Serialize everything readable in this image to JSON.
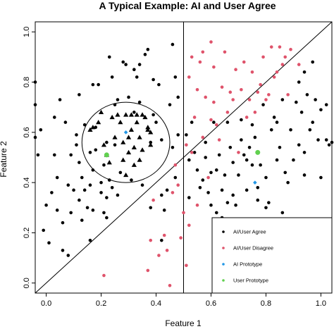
{
  "chart_data": {
    "type": "scatter",
    "title": "A Typical Example: AI and User Agree",
    "xlabel": "Feature 1",
    "ylabel": "Feature 2",
    "xlim": [
      -0.04,
      1.04
    ],
    "ylim": [
      -0.04,
      1.04
    ],
    "xticks": [
      "0.0",
      "0.2",
      "0.4",
      "0.6",
      "0.8",
      "1.0"
    ],
    "yticks": [
      "0.0",
      "0.2",
      "0.4",
      "0.6",
      "0.8",
      "1.0"
    ],
    "legend_position": "bottom-right",
    "legend": [
      {
        "label": "AI/User Agree",
        "color": "#000000"
      },
      {
        "label": "AI/User Disagree",
        "color": "#DF536B"
      },
      {
        "label": "AI Prototype",
        "color": "#2297E6"
      },
      {
        "label": "User Prototype",
        "color": "#61D04F"
      }
    ],
    "reference_lines": {
      "vertical_x": 0.5,
      "diagonal": [
        [
          -0.04,
          -0.04
        ],
        [
          1.04,
          1.04
        ]
      ]
    },
    "circle": {
      "center": [
        0.29,
        0.56
      ],
      "radius": 0.16
    },
    "series": [
      {
        "name": "AI/User Agree",
        "color": "#000000",
        "points": [
          [
            -0.04,
            0.8
          ],
          [
            -0.04,
            0.71
          ],
          [
            -0.04,
            0.58
          ],
          [
            -0.03,
            0.51
          ],
          [
            -0.02,
            0.61
          ],
          [
            -0.01,
            0.21
          ],
          [
            0.0,
            0.31
          ],
          [
            0.01,
            0.16
          ],
          [
            0.02,
            0.36
          ],
          [
            0.03,
            0.51
          ],
          [
            0.03,
            0.66
          ],
          [
            0.04,
            0.42
          ],
          [
            0.04,
            0.29
          ],
          [
            0.05,
            0.73
          ],
          [
            0.06,
            0.13
          ],
          [
            0.06,
            0.24
          ],
          [
            0.07,
            0.64
          ],
          [
            0.08,
            0.39
          ],
          [
            0.08,
            0.11
          ],
          [
            0.09,
            0.28
          ],
          [
            0.09,
            0.51
          ],
          [
            0.1,
            0.37
          ],
          [
            0.11,
            0.55
          ],
          [
            0.11,
            0.59
          ],
          [
            0.12,
            0.33
          ],
          [
            0.12,
            0.48
          ],
          [
            0.12,
            0.75
          ],
          [
            0.13,
            0.42
          ],
          [
            0.13,
            0.25
          ],
          [
            0.14,
            0.63
          ],
          [
            0.14,
            0.37
          ],
          [
            0.15,
            0.3
          ],
          [
            0.16,
            0.39
          ],
          [
            0.16,
            0.17
          ],
          [
            0.16,
            0.52
          ],
          [
            0.17,
            0.29
          ],
          [
            0.17,
            0.79
          ],
          [
            0.17,
            0.45
          ],
          [
            0.18,
            0.62
          ],
          [
            0.18,
            0.53
          ],
          [
            0.19,
            0.79
          ],
          [
            0.2,
            0.4
          ],
          [
            0.2,
            0.36
          ],
          [
            0.21,
            0.28
          ],
          [
            0.21,
            0.47
          ],
          [
            0.22,
            0.34
          ],
          [
            0.22,
            0.26
          ],
          [
            0.22,
            0.56
          ],
          [
            0.23,
            0.9
          ],
          [
            0.23,
            0.41
          ],
          [
            0.24,
            0.38
          ],
          [
            0.24,
            0.82
          ],
          [
            0.25,
            0.71
          ],
          [
            0.25,
            0.55
          ],
          [
            0.26,
            0.73
          ],
          [
            0.26,
            0.35
          ],
          [
            0.27,
            0.44
          ],
          [
            0.28,
            0.88
          ],
          [
            0.29,
            0.87
          ],
          [
            0.3,
            0.74
          ],
          [
            0.31,
            0.41
          ],
          [
            0.32,
            0.85
          ],
          [
            0.32,
            0.68
          ],
          [
            0.33,
            0.82
          ],
          [
            0.34,
            0.72
          ],
          [
            0.34,
            0.87
          ],
          [
            0.35,
            0.39
          ],
          [
            0.36,
            0.91
          ],
          [
            0.37,
            0.93
          ],
          [
            0.38,
            0.56
          ],
          [
            0.38,
            0.3
          ],
          [
            0.39,
            0.67
          ],
          [
            0.39,
            0.81
          ],
          [
            0.4,
            0.64
          ],
          [
            0.41,
            0.79
          ],
          [
            0.42,
            0.57
          ],
          [
            0.42,
            0.35
          ],
          [
            0.42,
            0.17
          ],
          [
            0.43,
            0.29
          ],
          [
            0.44,
            0.37
          ],
          [
            0.45,
            0.71
          ],
          [
            0.46,
            0.54
          ],
          [
            0.46,
            0.95
          ],
          [
            0.47,
            0.42
          ],
          [
            0.47,
            0.82
          ],
          [
            0.48,
            0.74
          ],
          [
            0.48,
            0.59
          ],
          [
            0.51,
            0.59
          ],
          [
            0.52,
            0.49
          ],
          [
            0.52,
            0.34
          ],
          [
            0.53,
            0.64
          ],
          [
            0.54,
            0.52
          ],
          [
            0.55,
            0.45
          ],
          [
            0.56,
            0.38
          ],
          [
            0.57,
            0.41
          ],
          [
            0.58,
            0.56
          ],
          [
            0.58,
            0.5
          ],
          [
            0.59,
            0.36
          ],
          [
            0.6,
            0.44
          ],
          [
            0.6,
            0.31
          ],
          [
            0.61,
            0.64
          ],
          [
            0.62,
            0.45
          ],
          [
            0.62,
            0.28
          ],
          [
            0.63,
            0.51
          ],
          [
            0.64,
            0.37
          ],
          [
            0.64,
            0.26
          ],
          [
            0.65,
            0.43
          ],
          [
            0.66,
            0.64
          ],
          [
            0.66,
            0.32
          ],
          [
            0.67,
            0.54
          ],
          [
            0.68,
            0.48
          ],
          [
            0.68,
            0.35
          ],
          [
            0.69,
            0.31
          ],
          [
            0.7,
            0.43
          ],
          [
            0.71,
            0.57
          ],
          [
            0.71,
            0.65
          ],
          [
            0.72,
            0.51
          ],
          [
            0.73,
            0.49
          ],
          [
            0.73,
            0.37
          ],
          [
            0.74,
            0.54
          ],
          [
            0.75,
            0.63
          ],
          [
            0.75,
            0.47
          ],
          [
            0.76,
            0.58
          ],
          [
            0.77,
            0.38
          ],
          [
            0.77,
            0.33
          ],
          [
            0.78,
            0.47
          ],
          [
            0.79,
            0.71
          ],
          [
            0.8,
            0.42
          ],
          [
            0.81,
            0.32
          ],
          [
            0.82,
            0.61
          ],
          [
            0.83,
            0.66
          ],
          [
            0.84,
            0.49
          ],
          [
            0.85,
            0.54
          ],
          [
            0.86,
            0.73
          ],
          [
            0.87,
            0.44
          ],
          [
            0.88,
            0.4
          ],
          [
            0.89,
            0.61
          ],
          [
            0.9,
            0.49
          ],
          [
            0.91,
            0.72
          ],
          [
            0.92,
            0.55
          ],
          [
            0.93,
            0.68
          ],
          [
            0.94,
            0.52
          ],
          [
            0.95,
            0.75
          ],
          [
            0.96,
            0.61
          ],
          [
            0.97,
            0.64
          ],
          [
            0.98,
            0.73
          ],
          [
            0.99,
            0.57
          ],
          [
            1.0,
            0.69
          ],
          [
            1.02,
            0.57
          ],
          [
            1.02,
            0.71
          ],
          [
            1.03,
            0.55
          ],
          [
            1.04,
            0.56
          ],
          [
            0.92,
            0.8
          ],
          [
            0.94,
            0.84
          ],
          [
            0.97,
            0.88
          ],
          [
            0.84,
            0.64
          ],
          [
            0.8,
            0.3
          ],
          [
            0.86,
            0.28
          ],
          [
            0.94,
            0.43
          ],
          [
            1.0,
            0.42
          ]
        ]
      },
      {
        "name": "AI/User Agree (triangles)",
        "color": "#000000",
        "shape": "triangle",
        "points": [
          [
            0.16,
            0.61
          ],
          [
            0.17,
            0.62
          ],
          [
            0.19,
            0.64
          ],
          [
            0.2,
            0.68
          ],
          [
            0.21,
            0.55
          ],
          [
            0.22,
            0.51
          ],
          [
            0.23,
            0.48
          ],
          [
            0.24,
            0.66
          ],
          [
            0.25,
            0.58
          ],
          [
            0.26,
            0.67
          ],
          [
            0.27,
            0.64
          ],
          [
            0.28,
            0.56
          ],
          [
            0.28,
            0.49
          ],
          [
            0.29,
            0.43
          ],
          [
            0.29,
            0.67
          ],
          [
            0.3,
            0.58
          ],
          [
            0.3,
            0.52
          ],
          [
            0.31,
            0.67
          ],
          [
            0.31,
            0.61
          ],
          [
            0.32,
            0.54
          ],
          [
            0.32,
            0.47
          ],
          [
            0.33,
            0.67
          ],
          [
            0.33,
            0.64
          ],
          [
            0.34,
            0.49
          ],
          [
            0.34,
            0.58
          ],
          [
            0.35,
            0.67
          ],
          [
            0.35,
            0.53
          ],
          [
            0.36,
            0.66
          ],
          [
            0.37,
            0.62
          ],
          [
            0.37,
            0.61
          ],
          [
            0.38,
            0.55
          ],
          [
            0.38,
            0.6
          ]
        ]
      },
      {
        "name": "AI/User Disagree",
        "color": "#DF536B",
        "points": [
          [
            0.21,
            0.03
          ],
          [
            0.45,
            -0.01
          ],
          [
            0.44,
            0.13
          ],
          [
            0.41,
            0.11
          ],
          [
            0.38,
            0.17
          ],
          [
            0.37,
            0.05
          ],
          [
            0.39,
            0.33
          ],
          [
            0.43,
            0.19
          ],
          [
            0.46,
            0.36
          ],
          [
            0.47,
            0.47
          ],
          [
            0.48,
            0.39
          ],
          [
            0.49,
            0.18
          ],
          [
            0.5,
            0.28
          ],
          [
            0.51,
            0.55
          ],
          [
            0.52,
            0.82
          ],
          [
            0.53,
            0.52
          ],
          [
            0.54,
            0.66
          ],
          [
            0.55,
            0.77
          ],
          [
            0.55,
            0.31
          ],
          [
            0.56,
            0.88
          ],
          [
            0.57,
            0.58
          ],
          [
            0.58,
            0.74
          ],
          [
            0.59,
            0.42
          ],
          [
            0.6,
            0.65
          ],
          [
            0.61,
            0.86
          ],
          [
            0.61,
            0.72
          ],
          [
            0.62,
            0.63
          ],
          [
            0.63,
            0.57
          ],
          [
            0.64,
            0.78
          ],
          [
            0.65,
            0.92
          ],
          [
            0.66,
            0.68
          ],
          [
            0.67,
            0.76
          ],
          [
            0.68,
            0.73
          ],
          [
            0.69,
            0.85
          ],
          [
            0.7,
            0.52
          ],
          [
            0.71,
            0.77
          ],
          [
            0.72,
            0.88
          ],
          [
            0.73,
            0.66
          ],
          [
            0.74,
            0.73
          ],
          [
            0.75,
            0.84
          ],
          [
            0.76,
            0.68
          ],
          [
            0.77,
            0.76
          ],
          [
            0.78,
            0.79
          ],
          [
            0.79,
            0.9
          ],
          [
            0.8,
            0.73
          ],
          [
            0.81,
            0.75
          ],
          [
            0.82,
            0.94
          ],
          [
            0.83,
            0.82
          ],
          [
            0.84,
            0.84
          ],
          [
            0.85,
            0.94
          ],
          [
            0.86,
            0.87
          ],
          [
            0.87,
            0.9
          ],
          [
            0.88,
            0.75
          ],
          [
            0.89,
            0.93
          ],
          [
            0.92,
            0.87
          ],
          [
            0.53,
            0.9
          ],
          [
            0.6,
            0.96
          ],
          [
            0.57,
            0.92
          ],
          [
            0.52,
            0.23
          ],
          [
            0.51,
            0.07
          ]
        ]
      },
      {
        "name": "AI Prototype",
        "color": "#2297E6",
        "points": [
          [
            0.29,
            0.6
          ],
          [
            0.76,
            0.4
          ]
        ]
      },
      {
        "name": "User Prototype",
        "color": "#61D04F",
        "points": [
          [
            0.22,
            0.51
          ],
          [
            0.77,
            0.52
          ]
        ]
      }
    ]
  }
}
